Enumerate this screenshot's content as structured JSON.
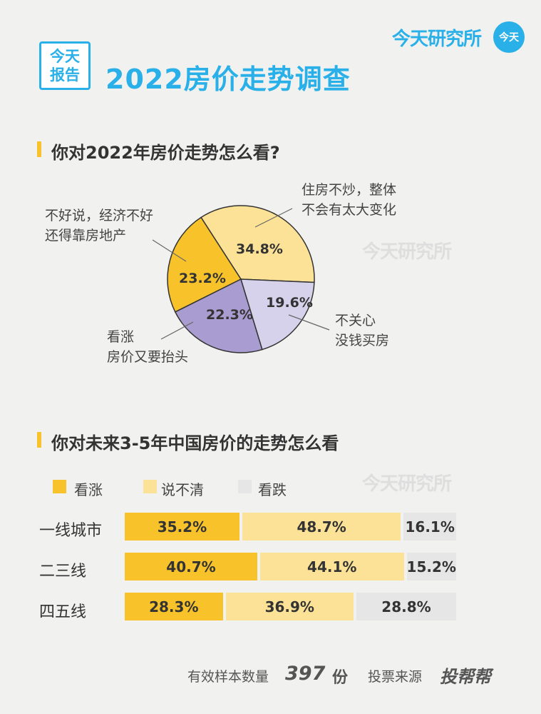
{
  "header": {
    "brand": "今天研究所",
    "brand_badge": "今天",
    "logo_line1": "今天",
    "logo_line2": "报告",
    "title": "2022房价走势调查"
  },
  "watermark": "今天研究所",
  "colors": {
    "accent": "#2ab0e8",
    "yellow": "#f8c32a",
    "light_yellow": "#fbe296",
    "purple_dark": "#a99cd0",
    "purple_light": "#d7d2ec",
    "gray": "#e6e6e6",
    "background": "#f1f1f0"
  },
  "section1": {
    "title": "你对2022年房价走势怎么看?"
  },
  "section2": {
    "title": "你对未来3-5年中国房价的走势怎么看"
  },
  "chart_data": [
    {
      "type": "pie",
      "title": "你对2022年房价走势怎么看?",
      "slices": [
        {
          "label_line1": "住房不炒，整体",
          "label_line2": "不会有太大变化",
          "value": 34.8,
          "value_label": "34.8%",
          "color": "#fbe296"
        },
        {
          "label_line1": "不关心",
          "label_line2": "没钱买房",
          "value": 19.6,
          "value_label": "19.6%",
          "color": "#d7d2ec"
        },
        {
          "label_line1": "看涨",
          "label_line2": "房价又要抬头",
          "value": 22.3,
          "value_label": "22.3%",
          "color": "#a99cd0"
        },
        {
          "label_line1": "不好说，经济不好",
          "label_line2": "还得靠房地产",
          "value": 23.2,
          "value_label": "23.2%",
          "color": "#f8c32a"
        }
      ]
    },
    {
      "type": "bar",
      "orientation": "horizontal-stacked",
      "title": "你对未来3-5年中国房价的走势怎么看",
      "legend_position": "top",
      "categories": [
        "一线城市",
        "二三线",
        "四五线"
      ],
      "series": [
        {
          "name": "看涨",
          "color": "#f8c32a",
          "values": [
            35.2,
            40.7,
            28.3
          ],
          "labels": [
            "35.2%",
            "40.7%",
            "28.3%"
          ]
        },
        {
          "name": "说不清",
          "color": "#fbe296",
          "values": [
            48.7,
            44.1,
            36.9
          ],
          "labels": [
            "48.7%",
            "44.1%",
            "36.9%"
          ]
        },
        {
          "name": "看跌",
          "color": "#e6e6e6",
          "values": [
            16.1,
            15.2,
            28.8
          ],
          "labels": [
            "16.1%",
            "15.2%",
            "28.8%"
          ]
        }
      ]
    }
  ],
  "footer": {
    "sample_label": "有效样本数量",
    "sample_count": "397",
    "sample_unit": "份",
    "source_label": "投票来源",
    "source_name": "投帮帮"
  }
}
